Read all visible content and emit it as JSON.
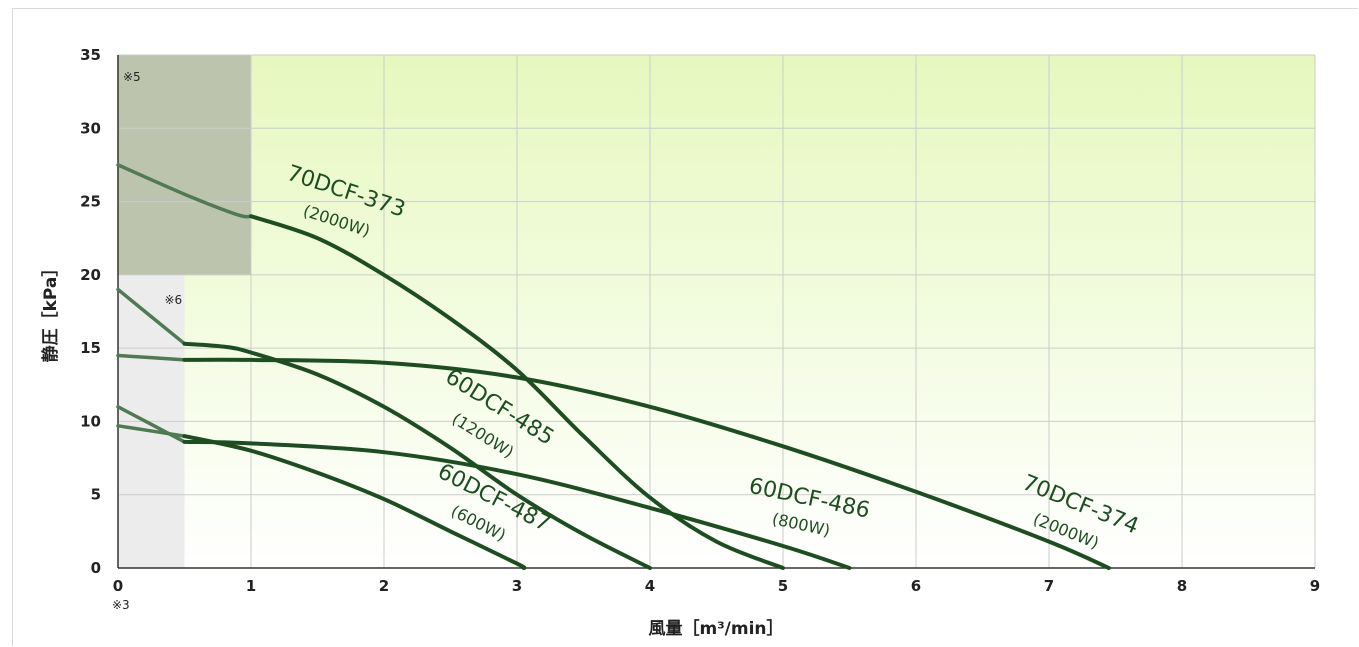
{
  "chart_data": {
    "type": "line",
    "xlabel": "風量［m³/min］",
    "ylabel": "静圧［kPa］",
    "xlim": [
      0,
      9
    ],
    "ylim": [
      0,
      35
    ],
    "x_ticks": [
      "0",
      "1",
      "2",
      "3",
      "4",
      "5",
      "6",
      "7",
      "8",
      "9"
    ],
    "y_ticks": [
      "0",
      "5",
      "10",
      "15",
      "20",
      "25",
      "30",
      "35"
    ],
    "grid": true,
    "notes": [
      "※3",
      "※5",
      "※6"
    ],
    "shaded_regions": [
      {
        "note": "※5",
        "x": [
          0,
          1
        ],
        "y": [
          20,
          35
        ],
        "color": "#bcc4ad"
      },
      {
        "note": "※6",
        "x": [
          0,
          0.5
        ],
        "y": [
          0,
          20
        ],
        "color": "#ececec"
      }
    ],
    "colors": {
      "curve": "#1f4d22",
      "background_top": "#e6f8bf",
      "grid": "#cccccc"
    },
    "series": [
      {
        "name": "70DCF-373",
        "power": "(2000W)",
        "x": [
          0,
          0.5,
          0.9,
          1.0,
          1.5,
          2.0,
          2.5,
          3.0,
          3.5,
          4.0,
          4.5,
          5.0
        ],
        "y": [
          27.5,
          25.5,
          24.1,
          24.0,
          22.5,
          20.0,
          17.0,
          13.5,
          9.0,
          4.8,
          1.8,
          0
        ],
        "shaded_until": 1.0
      },
      {
        "name": "70DCF-374",
        "power": "(2000W)",
        "x": [
          0,
          0.5,
          1.0,
          2.0,
          3.0,
          4.0,
          5.0,
          6.0,
          7.0,
          7.45
        ],
        "y": [
          14.5,
          14.2,
          14.2,
          14.0,
          13.0,
          11.0,
          8.3,
          5.2,
          1.8,
          0
        ],
        "shaded_until": 0.5
      },
      {
        "name": "60DCF-485",
        "power": "(1200W)",
        "x": [
          0,
          0.5,
          0.8,
          1.0,
          1.5,
          2.0,
          2.5,
          3.0,
          3.5,
          4.0
        ],
        "y": [
          19,
          15.3,
          15.1,
          14.7,
          13.2,
          11.0,
          8.2,
          5.0,
          2.3,
          0
        ],
        "shaded_until": 0.5
      },
      {
        "name": "60DCF-486",
        "power": "(800W)",
        "x": [
          0,
          0.5,
          1.0,
          2.0,
          3.0,
          4.0,
          5.0,
          5.5
        ],
        "y": [
          11,
          8.6,
          8.5,
          7.9,
          6.4,
          4.1,
          1.5,
          0
        ],
        "shaded_until": 0.5
      },
      {
        "name": "60DCF-487",
        "power": "(600W)",
        "x": [
          0,
          0.5,
          1.0,
          1.5,
          2.0,
          2.5,
          3.0,
          3.05
        ],
        "y": [
          9.7,
          9.0,
          8.0,
          6.5,
          4.7,
          2.5,
          0.3,
          0
        ],
        "shaded_until": 0.5
      }
    ]
  }
}
